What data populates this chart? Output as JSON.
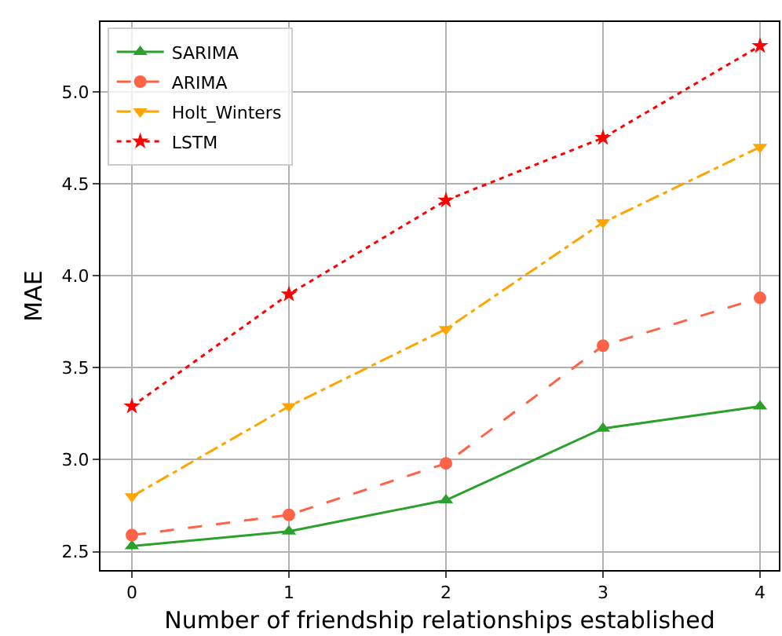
{
  "chart_data": {
    "type": "line",
    "xlabel": "Number of friendship relationships established",
    "ylabel": "MAE",
    "x": [
      0,
      1,
      2,
      3,
      4
    ],
    "series": [
      {
        "name": "SARIMA",
        "color": "#2ca02c",
        "marker": "triangle",
        "line_style": "solid",
        "values": [
          2.53,
          2.61,
          2.78,
          3.17,
          3.29
        ]
      },
      {
        "name": "ARIMA",
        "color": "#ff6347",
        "marker": "circle",
        "line_style": "dashed",
        "values": [
          2.59,
          2.7,
          2.98,
          3.62,
          3.88
        ]
      },
      {
        "name": "Holt_Winters",
        "color": "#ffa500",
        "marker": "triangle-down",
        "line_style": "dashdot",
        "values": [
          2.8,
          3.29,
          3.71,
          4.29,
          4.7
        ]
      },
      {
        "name": "LSTM",
        "color": "#ff0000",
        "marker": "star",
        "line_style": "dotted",
        "values": [
          3.29,
          3.9,
          4.41,
          4.75,
          5.25
        ]
      }
    ],
    "xlim": [
      -0.2,
      4.12
    ],
    "xticks": [
      0,
      1,
      2,
      3,
      4
    ],
    "ylim": [
      2.4,
      5.38
    ],
    "yticks": [
      2.5,
      {
        "value": 3,
        "label": "3.0"
      },
      3.5,
      {
        "value": 4,
        "label": "4.0"
      },
      4.5,
      {
        "value": 5,
        "label": "5.0"
      }
    ],
    "grid": true,
    "legend": "top left"
  }
}
